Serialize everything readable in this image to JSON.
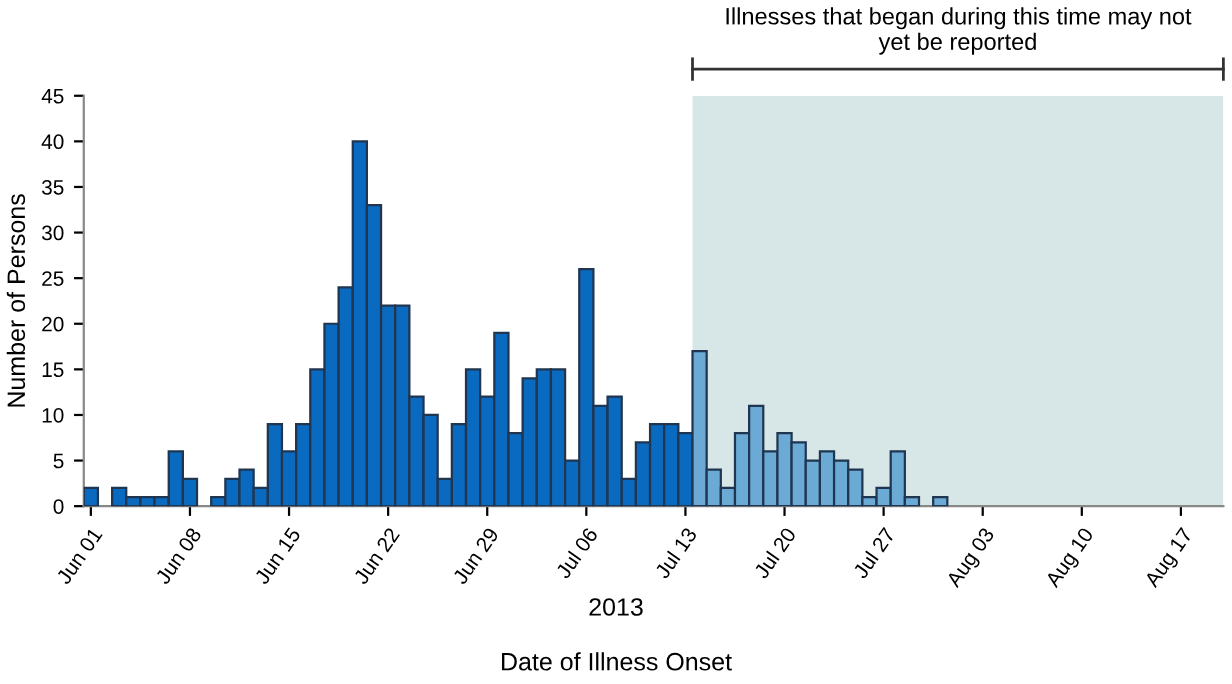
{
  "chart_data": {
    "type": "bar",
    "ylabel": "Number of Persons",
    "xlabel": "Date of Illness Onset",
    "annotations": [
      "2013"
    ],
    "x": [
      "2013-06-01",
      "2013-06-02",
      "2013-06-03",
      "2013-06-04",
      "2013-06-05",
      "2013-06-06",
      "2013-06-07",
      "2013-06-08",
      "2013-06-09",
      "2013-06-10",
      "2013-06-11",
      "2013-06-12",
      "2013-06-13",
      "2013-06-14",
      "2013-06-15",
      "2013-06-16",
      "2013-06-17",
      "2013-06-18",
      "2013-06-19",
      "2013-06-20",
      "2013-06-21",
      "2013-06-22",
      "2013-06-23",
      "2013-06-24",
      "2013-06-25",
      "2013-06-26",
      "2013-06-27",
      "2013-06-28",
      "2013-06-29",
      "2013-06-30",
      "2013-07-01",
      "2013-07-02",
      "2013-07-03",
      "2013-07-04",
      "2013-07-05",
      "2013-07-06",
      "2013-07-07",
      "2013-07-08",
      "2013-07-09",
      "2013-07-10",
      "2013-07-11",
      "2013-07-12",
      "2013-07-13",
      "2013-07-14",
      "2013-07-15",
      "2013-07-16",
      "2013-07-17",
      "2013-07-18",
      "2013-07-19",
      "2013-07-20",
      "2013-07-21",
      "2013-07-22",
      "2013-07-23",
      "2013-07-24",
      "2013-07-25",
      "2013-07-26",
      "2013-07-27",
      "2013-07-28",
      "2013-07-29",
      "2013-07-30",
      "2013-07-31"
    ],
    "values": [
      2,
      0,
      2,
      1,
      1,
      1,
      6,
      3,
      0,
      1,
      3,
      4,
      2,
      9,
      6,
      9,
      15,
      20,
      24,
      40,
      33,
      22,
      22,
      12,
      10,
      3,
      9,
      15,
      12,
      19,
      8,
      14,
      15,
      15,
      5,
      26,
      11,
      12,
      3,
      7,
      9,
      9,
      8,
      17,
      4,
      2,
      8,
      11,
      6,
      8,
      7,
      5,
      6,
      5,
      4,
      1,
      2,
      6,
      1,
      0,
      1
    ],
    "colors": [
      "#0a6abf",
      "#0a6abf",
      "#0a6abf",
      "#0a6abf",
      "#0a6abf",
      "#0a6abf",
      "#0a6abf",
      "#0a6abf",
      "#0a6abf",
      "#0a6abf",
      "#0a6abf",
      "#0a6abf",
      "#0a6abf",
      "#0a6abf",
      "#0a6abf",
      "#0a6abf",
      "#0a6abf",
      "#0a6abf",
      "#0a6abf",
      "#0a6abf",
      "#0a6abf",
      "#0a6abf",
      "#0a6abf",
      "#0a6abf",
      "#0a6abf",
      "#0a6abf",
      "#0a6abf",
      "#0a6abf",
      "#0a6abf",
      "#0a6abf",
      "#0a6abf",
      "#0a6abf",
      "#0a6abf",
      "#0a6abf",
      "#0a6abf",
      "#0a6abf",
      "#0a6abf",
      "#0a6abf",
      "#0a6abf",
      "#0a6abf",
      "#0a6abf",
      "#0a6abf",
      "#0a6abf",
      "#6aaad4",
      "#6aaad4",
      "#6aaad4",
      "#6aaad4",
      "#6aaad4",
      "#6aaad4",
      "#6aaad4",
      "#6aaad4",
      "#6aaad4",
      "#6aaad4",
      "#6aaad4",
      "#6aaad4",
      "#6aaad4",
      "#6aaad4",
      "#6aaad4",
      "#6aaad4",
      "#6aaad4",
      "#6aaad4"
    ],
    "xlim": [
      "2013-05-31T12:00",
      "2013-08-20"
    ],
    "xticks": [
      {
        "value": "2013-06-01",
        "label": "Jun 01"
      },
      {
        "value": "2013-06-08",
        "label": "Jun 08"
      },
      {
        "value": "2013-06-15",
        "label": "Jun 15"
      },
      {
        "value": "2013-06-22",
        "label": "Jun 22"
      },
      {
        "value": "2013-06-29",
        "label": "Jun 29"
      },
      {
        "value": "2013-07-06",
        "label": "Jul 06"
      },
      {
        "value": "2013-07-13",
        "label": "Jul 13"
      },
      {
        "value": "2013-07-20",
        "label": "Jul 20"
      },
      {
        "value": "2013-07-27",
        "label": "Jul 27"
      },
      {
        "value": "2013-08-03",
        "label": "Aug 03"
      },
      {
        "value": "2013-08-10",
        "label": "Aug 10"
      },
      {
        "value": "2013-08-17",
        "label": "Aug 17"
      }
    ],
    "ylim": [
      0,
      45
    ],
    "yticks": [
      0,
      5,
      10,
      15,
      20,
      25,
      30,
      35,
      40,
      45
    ],
    "grid": false,
    "bands": [
      {
        "axis": "x",
        "from": "2013-07-13T12:00",
        "to": "2013-08-20",
        "label": "Illnesses that began during this time may not yet be reported",
        "color": "#d7e7e7"
      }
    ]
  }
}
